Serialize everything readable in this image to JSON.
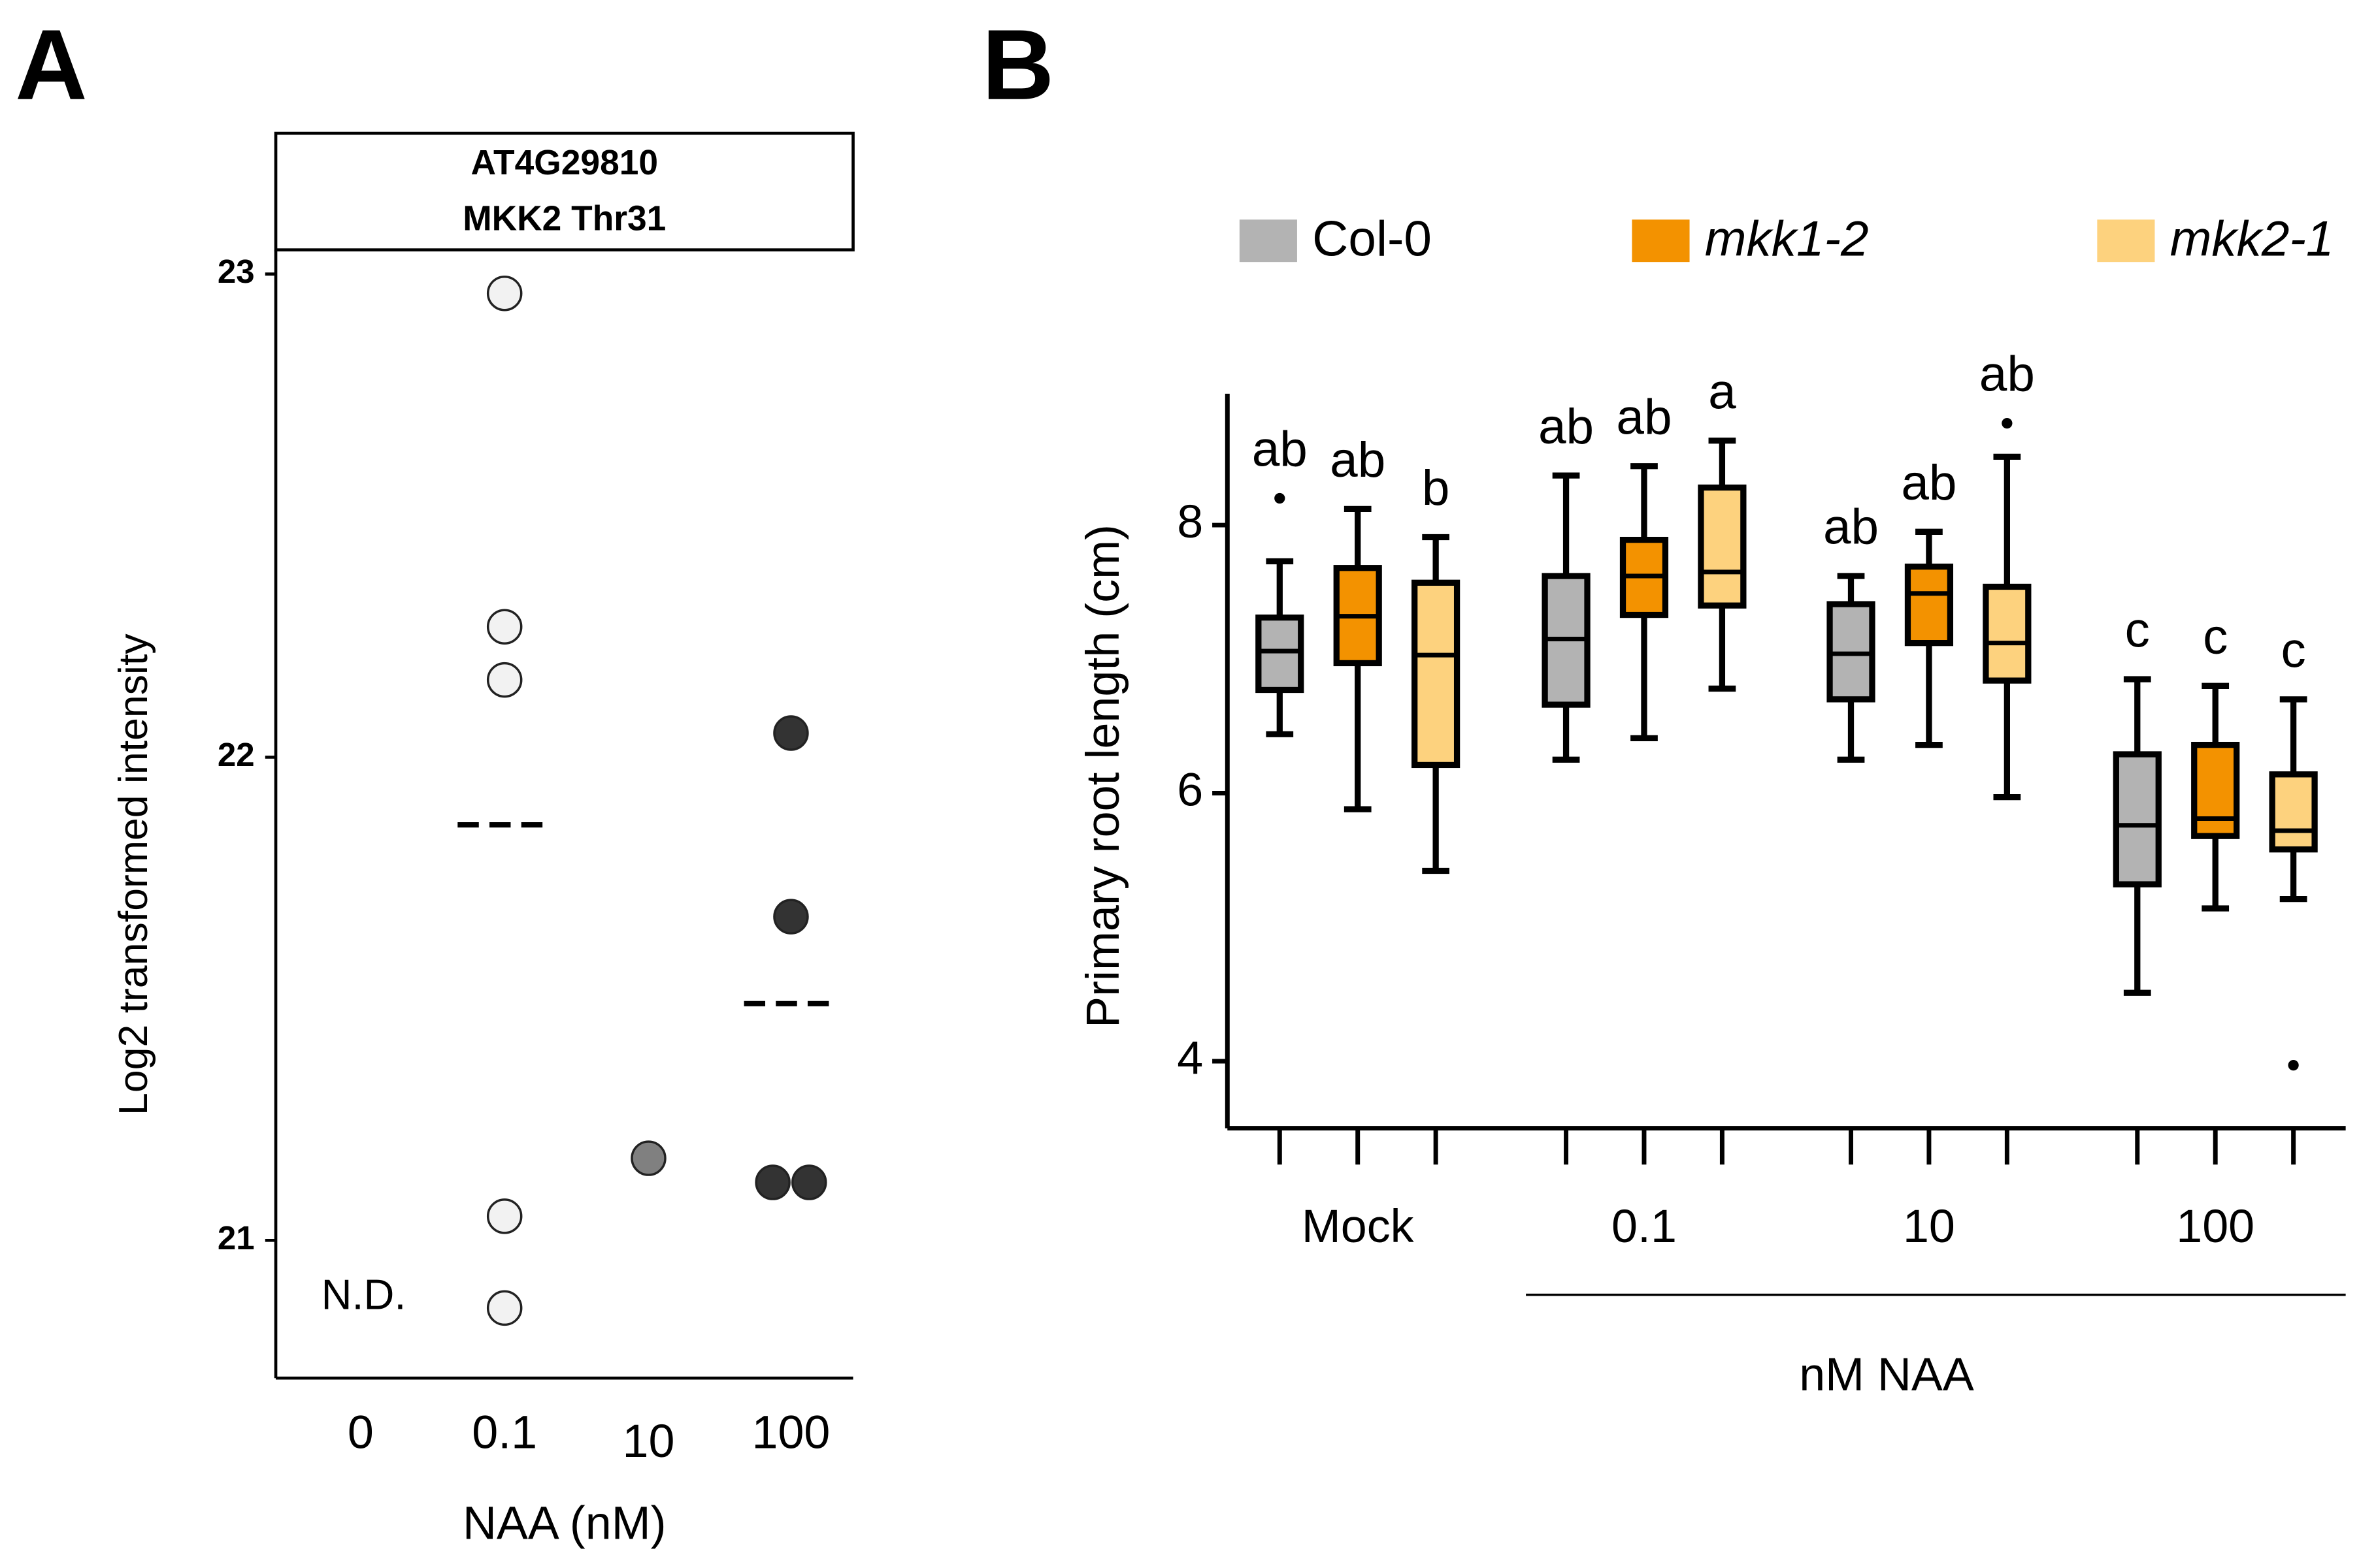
{
  "chart_data": [
    {
      "type": "scatter",
      "panel": "A",
      "strip": [
        "AT4G29810",
        "MKK2 Thr31"
      ],
      "categories": [
        "0",
        "0.1",
        "10",
        "100"
      ],
      "values": [
        [],
        [
          22.96,
          22.27,
          22.16,
          21.05,
          20.86
        ],
        [
          21.17
        ],
        [
          22.05,
          21.67,
          21.12,
          21.12
        ]
      ],
      "means": [
        null,
        21.86,
        null,
        21.49
      ],
      "colors": [
        null,
        "#f2f2f2",
        "#808080",
        "#333333"
      ],
      "ylim": [
        20.715,
        23.05
      ],
      "yticks": [
        21,
        22,
        23
      ],
      "ylabel": "Log2 transformed intensity",
      "xlabel": "NAA (nM)",
      "annotation": "N.D."
    },
    {
      "type": "box",
      "panel": "B",
      "categories": [
        "Mock",
        "0.1",
        "10",
        "100"
      ],
      "series": [
        {
          "name": "Col-0",
          "color": "#b3b3b3",
          "values": [
            {
              "min": 6.44,
              "q1": 6.77,
              "median": 7.06,
              "q3": 7.31,
              "max": 7.73,
              "outliers": [
                8.2
              ]
            },
            {
              "min": 6.25,
              "q1": 6.66,
              "median": 7.15,
              "q3": 7.62,
              "max": 8.37,
              "outliers": []
            },
            {
              "min": 6.25,
              "q1": 6.7,
              "median": 7.04,
              "q3": 7.41,
              "max": 7.62,
              "outliers": []
            },
            {
              "min": 4.51,
              "q1": 5.32,
              "median": 5.76,
              "q3": 6.29,
              "max": 6.85,
              "outliers": []
            }
          ],
          "labels": [
            "ab",
            "ab",
            "ab",
            "c"
          ]
        },
        {
          "name": "mkk1-2",
          "color": "#f39200",
          "values": [
            {
              "min": 5.88,
              "q1": 6.97,
              "median": 7.32,
              "q3": 7.68,
              "max": 8.12,
              "outliers": []
            },
            {
              "min": 6.41,
              "q1": 7.33,
              "median": 7.62,
              "q3": 7.89,
              "max": 8.44,
              "outliers": []
            },
            {
              "min": 6.36,
              "q1": 7.12,
              "median": 7.49,
              "q3": 7.69,
              "max": 7.95,
              "outliers": []
            },
            {
              "min": 5.14,
              "q1": 5.68,
              "median": 5.81,
              "q3": 6.36,
              "max": 6.8,
              "outliers": []
            }
          ],
          "labels": [
            "ab",
            "ab",
            "ab",
            "c"
          ]
        },
        {
          "name": "mkk2-1",
          "color": "#fdd27e",
          "values": [
            {
              "min": 5.42,
              "q1": 6.21,
              "median": 7.03,
              "q3": 7.57,
              "max": 7.91,
              "outliers": []
            },
            {
              "min": 6.78,
              "q1": 7.4,
              "median": 7.65,
              "q3": 8.28,
              "max": 8.63,
              "outliers": []
            },
            {
              "min": 5.97,
              "q1": 6.84,
              "median": 7.12,
              "q3": 7.54,
              "max": 8.51,
              "outliers": [
                8.76
              ]
            },
            {
              "min": 5.21,
              "q1": 5.58,
              "median": 5.72,
              "q3": 6.14,
              "max": 6.7,
              "outliers": [
                3.97
              ]
            }
          ],
          "labels": [
            "b",
            "a",
            "ab",
            "c"
          ]
        }
      ],
      "ylim": [
        3.5,
        8.98
      ],
      "yticks": [
        4,
        6,
        8
      ],
      "ylabel": "Primary root length (cm)",
      "xlabel": "nM NAA"
    }
  ]
}
